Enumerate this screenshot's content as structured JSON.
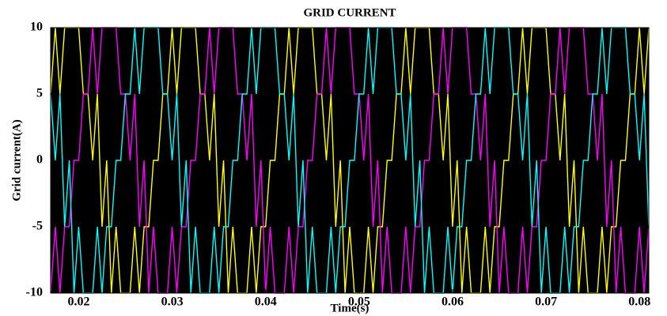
{
  "chart_data": {
    "type": "line",
    "title": "GRID CURRENT",
    "xlabel": "Time(s)",
    "ylabel": "Grid current(A)",
    "xlim": [
      0.017,
      0.081
    ],
    "ylim": [
      -10,
      10
    ],
    "xticks": [
      0.02,
      0.03,
      0.04,
      0.05,
      0.06,
      0.07,
      0.08
    ],
    "yticks": [
      -10,
      -5,
      0,
      5,
      10
    ],
    "background": "#000000",
    "x": [
      0.017,
      0.0175,
      0.018,
      0.0185,
      0.019,
      0.0195,
      0.02,
      0.0205,
      0.021,
      0.0215,
      0.022,
      0.0225,
      0.023,
      0.0235,
      0.024,
      0.0245,
      0.025,
      0.0255,
      0.026,
      0.0265,
      0.027,
      0.0275,
      0.028,
      0.0285,
      0.029,
      0.0295,
      0.03,
      0.0305,
      0.031,
      0.0315,
      0.032,
      0.0325,
      0.033,
      0.0335,
      0.034,
      0.0345,
      0.035,
      0.0355,
      0.036,
      0.0365,
      0.037,
      0.0375,
      0.038,
      0.0385,
      0.039,
      0.0395,
      0.04,
      0.0405,
      0.041,
      0.0415,
      0.042,
      0.0425,
      0.043,
      0.0435,
      0.044,
      0.0445,
      0.045,
      0.0455,
      0.046,
      0.0465,
      0.047,
      0.0475,
      0.048,
      0.0485,
      0.049,
      0.0495,
      0.05,
      0.0505,
      0.051,
      0.0515,
      0.052,
      0.0525,
      0.053,
      0.0535,
      0.054,
      0.0545,
      0.055,
      0.0555,
      0.056,
      0.0565,
      0.057,
      0.0575,
      0.058,
      0.0585,
      0.059,
      0.0595,
      0.06,
      0.0605,
      0.061,
      0.0615,
      0.062,
      0.0625,
      0.063,
      0.0635,
      0.064,
      0.0645,
      0.065,
      0.0655,
      0.066,
      0.0665,
      0.067,
      0.0675,
      0.068,
      0.0685,
      0.069,
      0.0695,
      0.07,
      0.0705,
      0.071,
      0.0715,
      0.072,
      0.0725,
      0.073,
      0.0735,
      0.074,
      0.0745,
      0.075,
      0.0755,
      0.076,
      0.0765,
      0.077,
      0.0775,
      0.078,
      0.0785,
      0.079,
      0.0795,
      0.08,
      0.0805,
      0.081
    ],
    "series": [
      {
        "color": "#ffff00",
        "values": [
          5,
          10,
          5,
          10,
          10,
          10,
          10,
          5,
          5,
          0,
          5,
          -5,
          0,
          -10,
          -5,
          -10,
          -10,
          -10,
          -5,
          -10,
          -5,
          -5,
          0,
          0,
          5,
          5,
          10,
          5,
          10,
          10,
          10,
          10,
          5,
          5,
          0,
          5,
          -5,
          0,
          -10,
          -5,
          -10,
          -10,
          -10,
          -5,
          -10,
          -5,
          -5,
          0,
          0,
          5,
          5,
          10,
          5,
          10,
          10,
          10,
          10,
          5,
          5,
          0,
          5,
          -5,
          0,
          -10,
          -5,
          -10,
          -10,
          -10,
          -5,
          -10,
          -5,
          -5,
          0,
          0,
          5,
          5,
          10,
          5,
          10,
          10,
          10,
          10,
          5,
          5,
          0,
          5,
          -5,
          0,
          -10,
          -5,
          -10,
          -10,
          -10,
          -5,
          -10,
          -5,
          -5,
          0,
          0,
          5,
          5,
          10,
          5,
          10,
          10,
          10,
          10,
          5,
          5,
          0,
          5,
          -5,
          0,
          -10,
          -5,
          -10,
          -10,
          -10,
          -5,
          -10,
          -5,
          -5,
          0,
          0,
          5,
          5,
          10,
          5,
          10
        ]
      },
      {
        "color": "#ff00ff",
        "values": [
          -10,
          -5,
          -10,
          -5,
          -5,
          0,
          0,
          5,
          5,
          10,
          5,
          10,
          10,
          10,
          10,
          5,
          5,
          0,
          5,
          -5,
          0,
          -10,
          -5,
          -10,
          -10,
          -10,
          -5,
          -10,
          -5,
          -5,
          0,
          0,
          5,
          5,
          10,
          5,
          10,
          10,
          10,
          10,
          5,
          5,
          0,
          5,
          -5,
          0,
          -10,
          -5,
          -10,
          -10,
          -10,
          -5,
          -10,
          -5,
          -5,
          0,
          0,
          5,
          5,
          10,
          5,
          10,
          10,
          10,
          10,
          5,
          5,
          0,
          5,
          -5,
          0,
          -10,
          -5,
          -10,
          -10,
          -10,
          -5,
          -10,
          -5,
          -5,
          0,
          0,
          5,
          5,
          10,
          5,
          10,
          10,
          10,
          10,
          5,
          5,
          0,
          5,
          -5,
          0,
          -10,
          -5,
          -10,
          -10,
          -10,
          -5,
          -10,
          -5,
          -5,
          0,
          0,
          5,
          5,
          10,
          5,
          10,
          10,
          10,
          10,
          5,
          5,
          0,
          5,
          -5,
          0,
          -10,
          -5,
          -10,
          -10,
          -10,
          -5,
          -10,
          -5
        ]
      },
      {
        "color": "#00ffff",
        "values": [
          5,
          0,
          5,
          -5,
          0,
          -10,
          -5,
          -10,
          -10,
          -10,
          -5,
          -10,
          -5,
          -5,
          0,
          0,
          5,
          5,
          10,
          5,
          10,
          10,
          10,
          10,
          5,
          5,
          0,
          5,
          -5,
          0,
          -10,
          -5,
          -10,
          -10,
          -10,
          -5,
          -10,
          -5,
          -5,
          0,
          0,
          5,
          5,
          10,
          5,
          10,
          10,
          10,
          10,
          5,
          5,
          0,
          5,
          -5,
          0,
          -10,
          -5,
          -10,
          -10,
          -10,
          -5,
          -10,
          -5,
          -5,
          0,
          0,
          5,
          5,
          10,
          5,
          10,
          10,
          10,
          10,
          5,
          5,
          0,
          5,
          -5,
          0,
          -10,
          -5,
          -10,
          -10,
          -10,
          -5,
          -10,
          -5,
          -5,
          0,
          0,
          5,
          5,
          10,
          5,
          10,
          10,
          10,
          10,
          5,
          5,
          0,
          5,
          -5,
          0,
          -10,
          -5,
          -10,
          -10,
          -10,
          -5,
          -10,
          -5,
          -5,
          0,
          0,
          5,
          5,
          10,
          5,
          10,
          10,
          10,
          10,
          5,
          5,
          0,
          5,
          -5
        ]
      }
    ]
  }
}
